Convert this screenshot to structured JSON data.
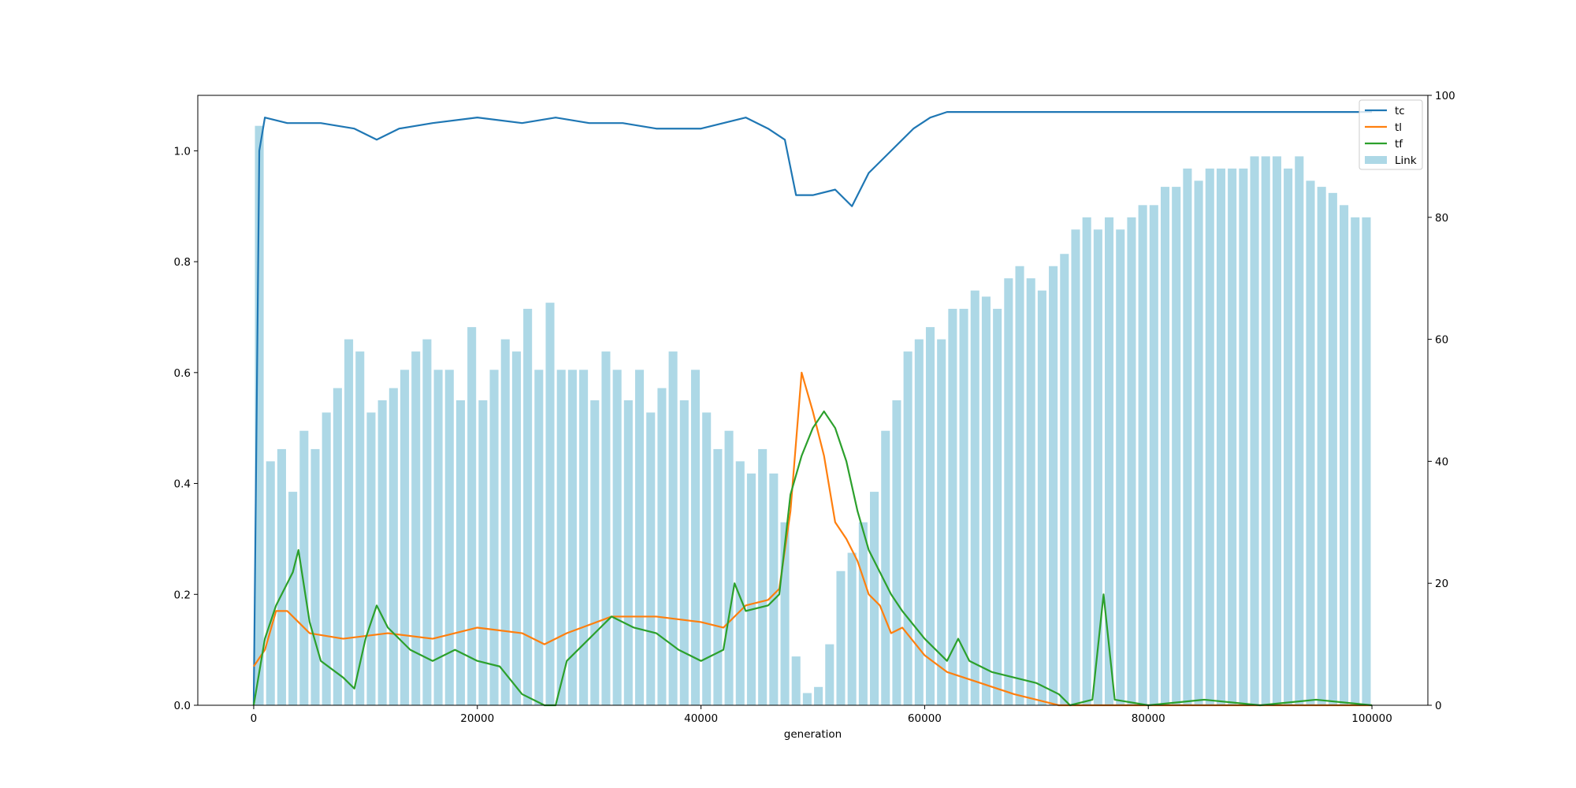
{
  "chart_data": {
    "type": "line",
    "title": "",
    "xlabel": "generation",
    "ylabel": "",
    "y2label": "",
    "xlim": [
      -5000,
      105000
    ],
    "ylim": [
      0,
      1.1
    ],
    "y2lim": [
      0,
      100
    ],
    "x_ticks": [
      0,
      20000,
      40000,
      60000,
      80000,
      100000
    ],
    "y_ticks": [
      0.0,
      0.2,
      0.4,
      0.6,
      0.8,
      1.0
    ],
    "y2_ticks": [
      0,
      20,
      40,
      60,
      80,
      100
    ],
    "grid": false,
    "legend_position": "upper right",
    "colors": {
      "tc": "#1f77b4",
      "tl": "#ff7f0e",
      "tf": "#2ca02c",
      "link": "#add8e6"
    },
    "series": [
      {
        "name": "tc",
        "axis": "left",
        "x": [
          0,
          500,
          1000,
          3000,
          6000,
          9000,
          11000,
          13000,
          16000,
          20000,
          24000,
          27000,
          30000,
          33000,
          36000,
          40000,
          44000,
          46000,
          47500,
          48500,
          50000,
          52000,
          53500,
          55000,
          57000,
          59000,
          60500,
          62000,
          64000,
          68000,
          72000,
          76000,
          80000,
          84000,
          88000,
          92000,
          96000,
          100000
        ],
        "values": [
          0.0,
          1.0,
          1.06,
          1.05,
          1.05,
          1.04,
          1.02,
          1.04,
          1.05,
          1.06,
          1.05,
          1.06,
          1.05,
          1.05,
          1.04,
          1.04,
          1.06,
          1.04,
          1.02,
          0.92,
          0.92,
          0.93,
          0.9,
          0.96,
          1.0,
          1.04,
          1.06,
          1.07,
          1.07,
          1.07,
          1.07,
          1.07,
          1.07,
          1.07,
          1.07,
          1.07,
          1.07,
          1.07
        ]
      },
      {
        "name": "tl",
        "axis": "left",
        "x": [
          0,
          1000,
          2000,
          3000,
          4000,
          5000,
          8000,
          12000,
          16000,
          20000,
          24000,
          26000,
          28000,
          32000,
          36000,
          40000,
          42000,
          44000,
          46000,
          47000,
          48000,
          49000,
          50000,
          51000,
          52000,
          53000,
          54000,
          55000,
          56000,
          57000,
          58000,
          60000,
          62000,
          65000,
          68000,
          70000,
          72000,
          74000,
          80000,
          90000,
          100000
        ],
        "values": [
          0.07,
          0.1,
          0.17,
          0.17,
          0.15,
          0.13,
          0.12,
          0.13,
          0.12,
          0.14,
          0.13,
          0.11,
          0.13,
          0.16,
          0.16,
          0.15,
          0.14,
          0.18,
          0.19,
          0.21,
          0.35,
          0.6,
          0.53,
          0.45,
          0.33,
          0.3,
          0.26,
          0.2,
          0.18,
          0.13,
          0.14,
          0.09,
          0.06,
          0.04,
          0.02,
          0.01,
          0.0,
          0.0,
          0.0,
          0.0,
          0.0
        ]
      },
      {
        "name": "tf",
        "axis": "left",
        "x": [
          0,
          1000,
          2000,
          3000,
          3500,
          4000,
          5000,
          6000,
          8000,
          9000,
          10000,
          11000,
          12000,
          14000,
          16000,
          18000,
          20000,
          22000,
          24000,
          26000,
          27000,
          28000,
          30000,
          32000,
          34000,
          36000,
          38000,
          40000,
          42000,
          43000,
          44000,
          46000,
          47000,
          48000,
          49000,
          50000,
          51000,
          52000,
          53000,
          54000,
          55000,
          56000,
          57000,
          58000,
          60000,
          62000,
          63000,
          64000,
          66000,
          70000,
          72000,
          73000,
          75000,
          76000,
          77000,
          80000,
          85000,
          90000,
          95000,
          100000
        ],
        "values": [
          0.0,
          0.12,
          0.18,
          0.22,
          0.24,
          0.28,
          0.15,
          0.08,
          0.05,
          0.03,
          0.12,
          0.18,
          0.14,
          0.1,
          0.08,
          0.1,
          0.08,
          0.07,
          0.02,
          0.0,
          0.0,
          0.08,
          0.12,
          0.16,
          0.14,
          0.13,
          0.1,
          0.08,
          0.1,
          0.22,
          0.17,
          0.18,
          0.2,
          0.38,
          0.45,
          0.5,
          0.53,
          0.5,
          0.44,
          0.35,
          0.28,
          0.24,
          0.2,
          0.17,
          0.12,
          0.08,
          0.12,
          0.08,
          0.06,
          0.04,
          0.02,
          0.0,
          0.01,
          0.2,
          0.01,
          0.0,
          0.01,
          0.0,
          0.01,
          0.0
        ]
      },
      {
        "name": "Link",
        "type": "bar",
        "axis": "right",
        "x": [
          500,
          1500,
          2500,
          3500,
          4500,
          5500,
          6500,
          7500,
          8500,
          9500,
          10500,
          11500,
          12500,
          13500,
          14500,
          15500,
          16500,
          17500,
          18500,
          19500,
          20500,
          21500,
          22500,
          23500,
          24500,
          25500,
          26500,
          27500,
          28500,
          29500,
          30500,
          31500,
          32500,
          33500,
          34500,
          35500,
          36500,
          37500,
          38500,
          39500,
          40500,
          41500,
          42500,
          43500,
          44500,
          45500,
          46500,
          47500,
          48500,
          49500,
          50500,
          51500,
          52500,
          53500,
          54500,
          55500,
          56500,
          57500,
          58500,
          59500,
          60500,
          61500,
          62500,
          63500,
          64500,
          65500,
          66500,
          67500,
          68500,
          69500,
          70500,
          71500,
          72500,
          73500,
          74500,
          75500,
          76500,
          77500,
          78500,
          79500,
          80500,
          81500,
          82500,
          83500,
          84500,
          85500,
          86500,
          87500,
          88500,
          89500,
          90500,
          91500,
          92500,
          93500,
          94500,
          95500,
          96500,
          97500,
          98500,
          99500
        ],
        "values": [
          95,
          40,
          42,
          35,
          45,
          42,
          48,
          52,
          60,
          58,
          48,
          50,
          52,
          55,
          58,
          60,
          55,
          55,
          50,
          62,
          50,
          55,
          60,
          58,
          65,
          55,
          66,
          55,
          55,
          55,
          50,
          58,
          55,
          50,
          55,
          48,
          52,
          58,
          50,
          55,
          48,
          42,
          45,
          40,
          38,
          42,
          38,
          30,
          8,
          2,
          3,
          10,
          22,
          25,
          30,
          35,
          45,
          50,
          58,
          60,
          62,
          60,
          65,
          65,
          68,
          67,
          65,
          70,
          72,
          70,
          68,
          72,
          74,
          78,
          80,
          78,
          80,
          78,
          80,
          82,
          82,
          85,
          85,
          88,
          86,
          88,
          88,
          88,
          88,
          90,
          90,
          90,
          88,
          90,
          86,
          85,
          84,
          82,
          80,
          80
        ]
      }
    ]
  }
}
